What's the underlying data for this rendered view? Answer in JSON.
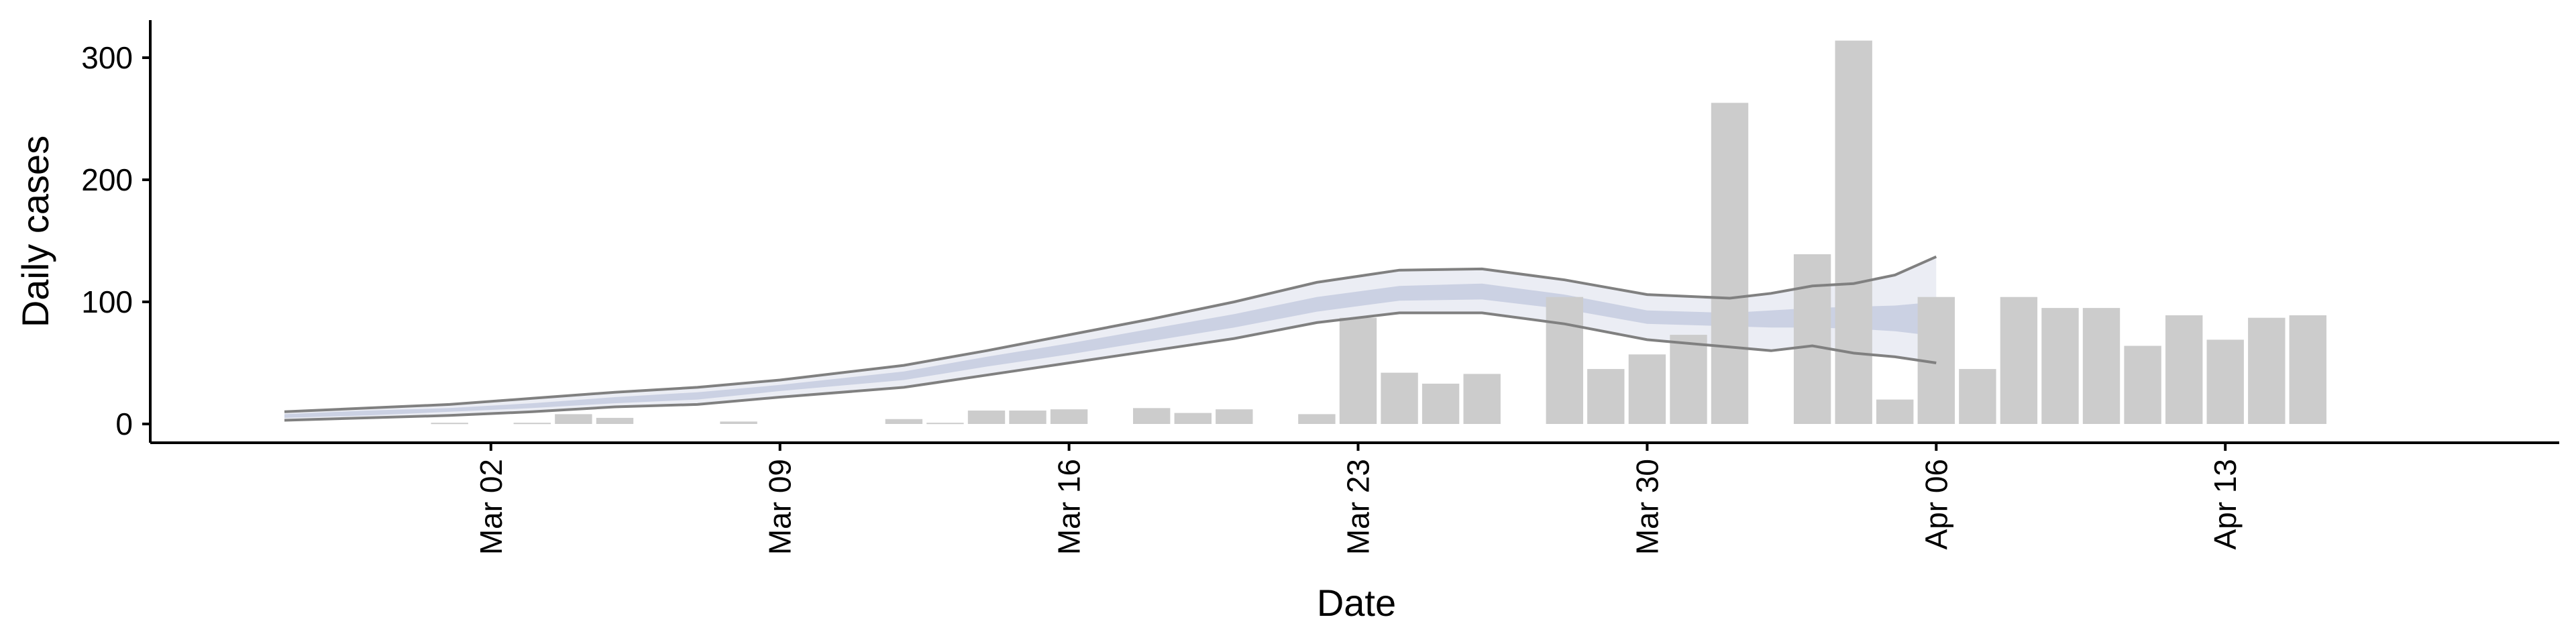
{
  "chart_data": {
    "type": "bar",
    "xlabel": "Date",
    "ylabel": "Daily cases",
    "ylim": [
      -15,
      330
    ],
    "x_range": [
      "2020-02-26",
      "2020-04-18"
    ],
    "y_ticks": [
      0,
      100,
      200,
      300
    ],
    "x_ticks": [
      {
        "date": "2020-03-02",
        "label": "Mar 02"
      },
      {
        "date": "2020-03-09",
        "label": "Mar 09"
      },
      {
        "date": "2020-03-16",
        "label": "Mar 16"
      },
      {
        "date": "2020-03-23",
        "label": "Mar 23"
      },
      {
        "date": "2020-03-30",
        "label": "Mar 30"
      },
      {
        "date": "2020-04-06",
        "label": "Apr 06"
      },
      {
        "date": "2020-04-13",
        "label": "Apr 13"
      }
    ],
    "bar_color": "#cccccc",
    "band_color": "#c5cbdf",
    "line_color": "#808080",
    "grid": false,
    "legend": "none",
    "series": [
      {
        "type": "bar",
        "points": [
          {
            "date": "2020-03-01",
            "value": 1
          },
          {
            "date": "2020-03-03",
            "value": 1
          },
          {
            "date": "2020-03-04",
            "value": 8
          },
          {
            "date": "2020-03-05",
            "value": 5
          },
          {
            "date": "2020-03-08",
            "value": 2
          },
          {
            "date": "2020-03-12",
            "value": 4
          },
          {
            "date": "2020-03-13",
            "value": 1
          },
          {
            "date": "2020-03-14",
            "value": 11
          },
          {
            "date": "2020-03-15",
            "value": 11
          },
          {
            "date": "2020-03-16",
            "value": 12
          },
          {
            "date": "2020-03-18",
            "value": 13
          },
          {
            "date": "2020-03-19",
            "value": 9
          },
          {
            "date": "2020-03-20",
            "value": 12
          },
          {
            "date": "2020-03-22",
            "value": 8
          },
          {
            "date": "2020-03-23",
            "value": 87
          },
          {
            "date": "2020-03-24",
            "value": 42
          },
          {
            "date": "2020-03-25",
            "value": 33
          },
          {
            "date": "2020-03-26",
            "value": 41
          },
          {
            "date": "2020-03-28",
            "value": 104
          },
          {
            "date": "2020-03-29",
            "value": 45
          },
          {
            "date": "2020-03-30",
            "value": 57
          },
          {
            "date": "2020-03-31",
            "value": 73
          },
          {
            "date": "2020-04-01",
            "value": 263
          },
          {
            "date": "2020-04-03",
            "value": 139
          },
          {
            "date": "2020-04-04",
            "value": 314
          },
          {
            "date": "2020-04-05",
            "value": 20
          },
          {
            "date": "2020-04-06",
            "value": 104
          },
          {
            "date": "2020-04-07",
            "value": 45
          },
          {
            "date": "2020-04-08",
            "value": 104
          },
          {
            "date": "2020-04-09",
            "value": 95
          },
          {
            "date": "2020-04-10",
            "value": 95
          },
          {
            "date": "2020-04-11",
            "value": 64
          },
          {
            "date": "2020-04-12",
            "value": 89
          },
          {
            "date": "2020-04-13",
            "value": 69
          },
          {
            "date": "2020-04-14",
            "value": 87
          },
          {
            "date": "2020-04-15",
            "value": 89
          }
        ]
      },
      {
        "type": "band",
        "points": [
          {
            "date": "2020-02-26",
            "lower": 3,
            "upper": 10,
            "inner_lower": 5,
            "inner_upper": 8
          },
          {
            "date": "2020-02-28",
            "lower": 5,
            "upper": 13,
            "inner_lower": 7,
            "inner_upper": 11
          },
          {
            "date": "2020-03-01",
            "lower": 7,
            "upper": 16,
            "inner_lower": 10,
            "inner_upper": 13
          },
          {
            "date": "2020-03-03",
            "lower": 10,
            "upper": 21,
            "inner_lower": 13,
            "inner_upper": 17
          },
          {
            "date": "2020-03-05",
            "lower": 14,
            "upper": 26,
            "inner_lower": 17,
            "inner_upper": 22
          },
          {
            "date": "2020-03-07",
            "lower": 16,
            "upper": 30,
            "inner_lower": 20,
            "inner_upper": 26
          },
          {
            "date": "2020-03-09",
            "lower": 22,
            "upper": 36,
            "inner_lower": 27,
            "inner_upper": 32
          },
          {
            "date": "2020-03-12",
            "lower": 30,
            "upper": 48,
            "inner_lower": 36,
            "inner_upper": 43
          },
          {
            "date": "2020-03-14",
            "lower": 40,
            "upper": 60,
            "inner_lower": 47,
            "inner_upper": 55
          },
          {
            "date": "2020-03-16",
            "lower": 50,
            "upper": 73,
            "inner_lower": 57,
            "inner_upper": 66
          },
          {
            "date": "2020-03-18",
            "lower": 60,
            "upper": 86,
            "inner_lower": 68,
            "inner_upper": 78
          },
          {
            "date": "2020-03-20",
            "lower": 70,
            "upper": 100,
            "inner_lower": 79,
            "inner_upper": 90
          },
          {
            "date": "2020-03-22",
            "lower": 83,
            "upper": 116,
            "inner_lower": 92,
            "inner_upper": 104
          },
          {
            "date": "2020-03-24",
            "lower": 91,
            "upper": 126,
            "inner_lower": 101,
            "inner_upper": 113
          },
          {
            "date": "2020-03-26",
            "lower": 91,
            "upper": 127,
            "inner_lower": 102,
            "inner_upper": 115
          },
          {
            "date": "2020-03-28",
            "lower": 82,
            "upper": 118,
            "inner_lower": 94,
            "inner_upper": 106
          },
          {
            "date": "2020-03-30",
            "lower": 69,
            "upper": 106,
            "inner_lower": 82,
            "inner_upper": 93
          },
          {
            "date": "2020-04-01",
            "lower": 63,
            "upper": 103,
            "inner_lower": 80,
            "inner_upper": 91
          },
          {
            "date": "2020-04-02",
            "lower": 60,
            "upper": 107,
            "inner_lower": 79,
            "inner_upper": 93
          },
          {
            "date": "2020-04-03",
            "lower": 64,
            "upper": 113,
            "inner_lower": 79,
            "inner_upper": 95
          },
          {
            "date": "2020-04-04",
            "lower": 58,
            "upper": 115,
            "inner_lower": 78,
            "inner_upper": 96
          },
          {
            "date": "2020-04-05",
            "lower": 55,
            "upper": 122,
            "inner_lower": 76,
            "inner_upper": 97
          },
          {
            "date": "2020-04-06",
            "lower": 50,
            "upper": 137,
            "inner_lower": 72,
            "inner_upper": 100
          }
        ]
      }
    ]
  }
}
